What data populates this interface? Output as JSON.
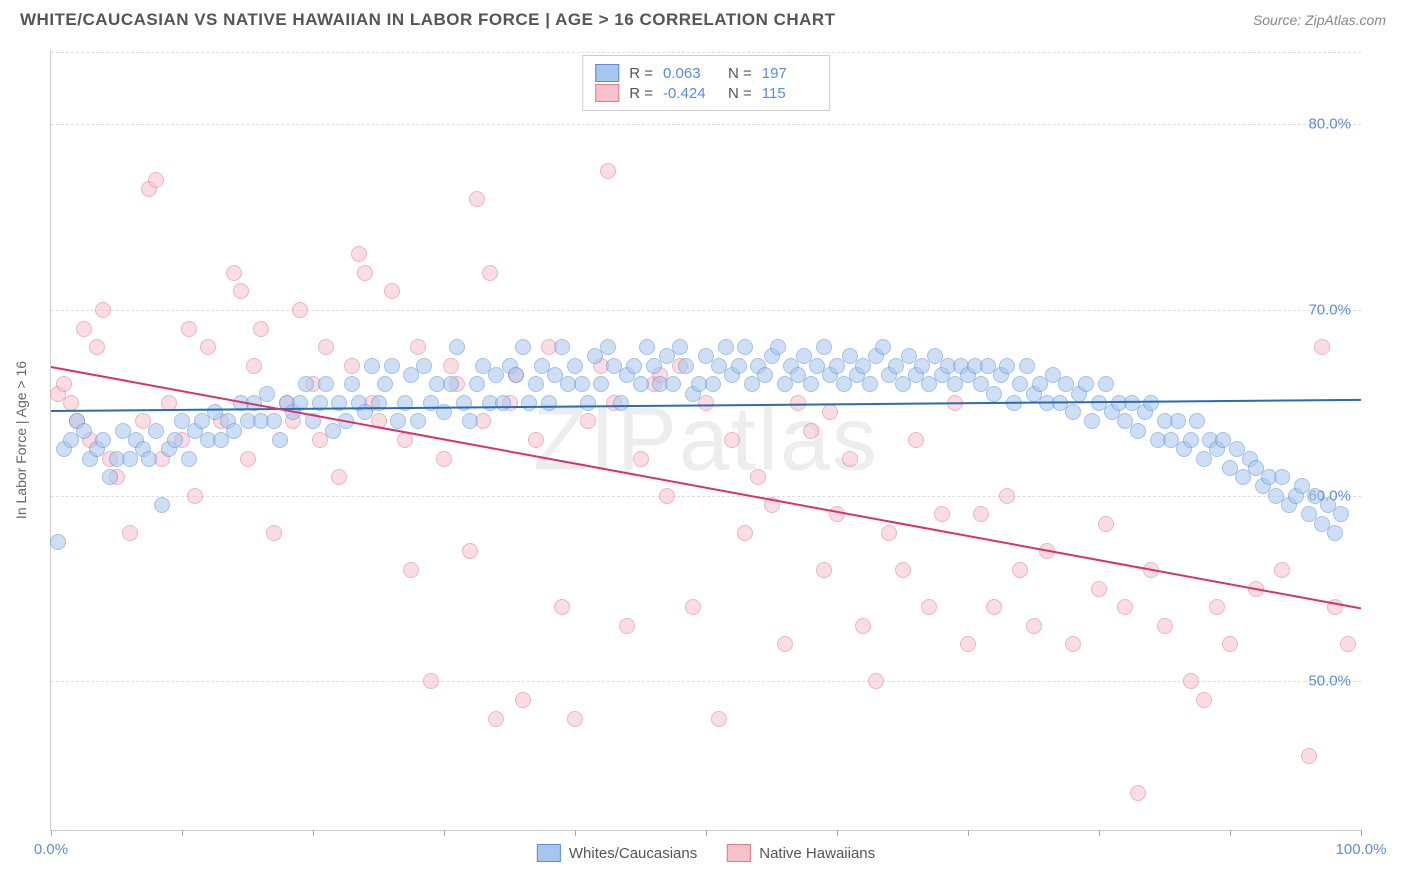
{
  "title": "WHITE/CAUCASIAN VS NATIVE HAWAIIAN IN LABOR FORCE | AGE > 16 CORRELATION CHART",
  "source": "Source: ZipAtlas.com",
  "watermark": "ZIPatlas",
  "y_axis_label": "In Labor Force | Age > 16",
  "chart": {
    "type": "scatter",
    "xlim": [
      0,
      100
    ],
    "ylim": [
      42,
      84
    ],
    "x_ticks_labels": {
      "0": "0.0%",
      "100": "100.0%"
    },
    "x_tick_marks": [
      0,
      10,
      20,
      30,
      40,
      50,
      60,
      70,
      80,
      90,
      100
    ],
    "y_ticks": {
      "50": "50.0%",
      "60": "60.0%",
      "70": "70.0%",
      "80": "80.0%"
    },
    "grid_color": "#dddddd",
    "background": "#ffffff",
    "axis_label_color": "#5b8dd6",
    "point_radius": 8,
    "point_opacity": 0.55,
    "series": [
      {
        "name": "Whites/Caucasians",
        "color_fill": "#a7c6ed",
        "color_stroke": "#5b8dd6",
        "R": "0.063",
        "N": "197",
        "trend": {
          "x1": 0,
          "y1": 64.6,
          "x2": 100,
          "y2": 65.2,
          "color": "#2b6cb0",
          "width": 2
        },
        "points": [
          [
            0.5,
            57.5
          ],
          [
            1,
            62.5
          ],
          [
            1.5,
            63
          ],
          [
            2,
            64
          ],
          [
            2.5,
            63.5
          ],
          [
            3,
            62
          ],
          [
            3.5,
            62.5
          ],
          [
            4,
            63
          ],
          [
            4.5,
            61
          ],
          [
            5,
            62
          ],
          [
            5.5,
            63.5
          ],
          [
            6,
            62
          ],
          [
            6.5,
            63
          ],
          [
            7,
            62.5
          ],
          [
            7.5,
            62
          ],
          [
            8,
            63.5
          ],
          [
            8.5,
            59.5
          ],
          [
            9,
            62.5
          ],
          [
            9.5,
            63
          ],
          [
            10,
            64
          ],
          [
            10.5,
            62
          ],
          [
            11,
            63.5
          ],
          [
            11.5,
            64
          ],
          [
            12,
            63
          ],
          [
            12.5,
            64.5
          ],
          [
            13,
            63
          ],
          [
            13.5,
            64
          ],
          [
            14,
            63.5
          ],
          [
            14.5,
            65
          ],
          [
            15,
            64
          ],
          [
            15.5,
            65
          ],
          [
            16,
            64
          ],
          [
            16.5,
            65.5
          ],
          [
            17,
            64
          ],
          [
            17.5,
            63
          ],
          [
            18,
            65
          ],
          [
            18.5,
            64.5
          ],
          [
            19,
            65
          ],
          [
            19.5,
            66
          ],
          [
            20,
            64
          ],
          [
            20.5,
            65
          ],
          [
            21,
            66
          ],
          [
            21.5,
            63.5
          ],
          [
            22,
            65
          ],
          [
            22.5,
            64
          ],
          [
            23,
            66
          ],
          [
            23.5,
            65
          ],
          [
            24,
            64.5
          ],
          [
            24.5,
            67
          ],
          [
            25,
            65
          ],
          [
            25.5,
            66
          ],
          [
            26,
            67
          ],
          [
            26.5,
            64
          ],
          [
            27,
            65
          ],
          [
            27.5,
            66.5
          ],
          [
            28,
            64
          ],
          [
            28.5,
            67
          ],
          [
            29,
            65
          ],
          [
            29.5,
            66
          ],
          [
            30,
            64.5
          ],
          [
            30.5,
            66
          ],
          [
            31,
            68
          ],
          [
            31.5,
            65
          ],
          [
            32,
            64
          ],
          [
            32.5,
            66
          ],
          [
            33,
            67
          ],
          [
            33.5,
            65
          ],
          [
            34,
            66.5
          ],
          [
            34.5,
            65
          ],
          [
            35,
            67
          ],
          [
            35.5,
            66.5
          ],
          [
            36,
            68
          ],
          [
            36.5,
            65
          ],
          [
            37,
            66
          ],
          [
            37.5,
            67
          ],
          [
            38,
            65
          ],
          [
            38.5,
            66.5
          ],
          [
            39,
            68
          ],
          [
            39.5,
            66
          ],
          [
            40,
            67
          ],
          [
            40.5,
            66
          ],
          [
            41,
            65
          ],
          [
            41.5,
            67.5
          ],
          [
            42,
            66
          ],
          [
            42.5,
            68
          ],
          [
            43,
            67
          ],
          [
            43.5,
            65
          ],
          [
            44,
            66.5
          ],
          [
            44.5,
            67
          ],
          [
            45,
            66
          ],
          [
            45.5,
            68
          ],
          [
            46,
            67
          ],
          [
            46.5,
            66
          ],
          [
            47,
            67.5
          ],
          [
            47.5,
            66
          ],
          [
            48,
            68
          ],
          [
            48.5,
            67
          ],
          [
            49,
            65.5
          ],
          [
            49.5,
            66
          ],
          [
            50,
            67.5
          ],
          [
            50.5,
            66
          ],
          [
            51,
            67
          ],
          [
            51.5,
            68
          ],
          [
            52,
            66.5
          ],
          [
            52.5,
            67
          ],
          [
            53,
            68
          ],
          [
            53.5,
            66
          ],
          [
            54,
            67
          ],
          [
            54.5,
            66.5
          ],
          [
            55,
            67.5
          ],
          [
            55.5,
            68
          ],
          [
            56,
            66
          ],
          [
            56.5,
            67
          ],
          [
            57,
            66.5
          ],
          [
            57.5,
            67.5
          ],
          [
            58,
            66
          ],
          [
            58.5,
            67
          ],
          [
            59,
            68
          ],
          [
            59.5,
            66.5
          ],
          [
            60,
            67
          ],
          [
            60.5,
            66
          ],
          [
            61,
            67.5
          ],
          [
            61.5,
            66.5
          ],
          [
            62,
            67
          ],
          [
            62.5,
            66
          ],
          [
            63,
            67.5
          ],
          [
            63.5,
            68
          ],
          [
            64,
            66.5
          ],
          [
            64.5,
            67
          ],
          [
            65,
            66
          ],
          [
            65.5,
            67.5
          ],
          [
            66,
            66.5
          ],
          [
            66.5,
            67
          ],
          [
            67,
            66
          ],
          [
            67.5,
            67.5
          ],
          [
            68,
            66.5
          ],
          [
            68.5,
            67
          ],
          [
            69,
            66
          ],
          [
            69.5,
            67
          ],
          [
            70,
            66.5
          ],
          [
            70.5,
            67
          ],
          [
            71,
            66
          ],
          [
            71.5,
            67
          ],
          [
            72,
            65.5
          ],
          [
            72.5,
            66.5
          ],
          [
            73,
            67
          ],
          [
            73.5,
            65
          ],
          [
            74,
            66
          ],
          [
            74.5,
            67
          ],
          [
            75,
            65.5
          ],
          [
            75.5,
            66
          ],
          [
            76,
            65
          ],
          [
            76.5,
            66.5
          ],
          [
            77,
            65
          ],
          [
            77.5,
            66
          ],
          [
            78,
            64.5
          ],
          [
            78.5,
            65.5
          ],
          [
            79,
            66
          ],
          [
            79.5,
            64
          ],
          [
            80,
            65
          ],
          [
            80.5,
            66
          ],
          [
            81,
            64.5
          ],
          [
            81.5,
            65
          ],
          [
            82,
            64
          ],
          [
            82.5,
            65
          ],
          [
            83,
            63.5
          ],
          [
            83.5,
            64.5
          ],
          [
            84,
            65
          ],
          [
            84.5,
            63
          ],
          [
            85,
            64
          ],
          [
            85.5,
            63
          ],
          [
            86,
            64
          ],
          [
            86.5,
            62.5
          ],
          [
            87,
            63
          ],
          [
            87.5,
            64
          ],
          [
            88,
            62
          ],
          [
            88.5,
            63
          ],
          [
            89,
            62.5
          ],
          [
            89.5,
            63
          ],
          [
            90,
            61.5
          ],
          [
            90.5,
            62.5
          ],
          [
            91,
            61
          ],
          [
            91.5,
            62
          ],
          [
            92,
            61.5
          ],
          [
            92.5,
            60.5
          ],
          [
            93,
            61
          ],
          [
            93.5,
            60
          ],
          [
            94,
            61
          ],
          [
            94.5,
            59.5
          ],
          [
            95,
            60
          ],
          [
            95.5,
            60.5
          ],
          [
            96,
            59
          ],
          [
            96.5,
            60
          ],
          [
            97,
            58.5
          ],
          [
            97.5,
            59.5
          ],
          [
            98,
            58
          ],
          [
            98.5,
            59
          ]
        ]
      },
      {
        "name": "Native Hawaiians",
        "color_fill": "#f5c2cb",
        "color_stroke": "#e07a8b",
        "R": "-0.424",
        "N": "115",
        "trend": {
          "x1": 0,
          "y1": 67,
          "x2": 100,
          "y2": 54,
          "color": "#d6336c",
          "width": 2
        },
        "points": [
          [
            0.5,
            65.5
          ],
          [
            1,
            66
          ],
          [
            1.5,
            65
          ],
          [
            2,
            64
          ],
          [
            2.5,
            69
          ],
          [
            3,
            63
          ],
          [
            3.5,
            68
          ],
          [
            4,
            70
          ],
          [
            4.5,
            62
          ],
          [
            5,
            61
          ],
          [
            6,
            58
          ],
          [
            7,
            64
          ],
          [
            7.5,
            76.5
          ],
          [
            8,
            77
          ],
          [
            8.5,
            62
          ],
          [
            9,
            65
          ],
          [
            10,
            63
          ],
          [
            10.5,
            69
          ],
          [
            11,
            60
          ],
          [
            12,
            68
          ],
          [
            13,
            64
          ],
          [
            14,
            72
          ],
          [
            14.5,
            71
          ],
          [
            15,
            62
          ],
          [
            15.5,
            67
          ],
          [
            16,
            69
          ],
          [
            17,
            58
          ],
          [
            18,
            65
          ],
          [
            18.5,
            64
          ],
          [
            19,
            70
          ],
          [
            20,
            66
          ],
          [
            20.5,
            63
          ],
          [
            21,
            68
          ],
          [
            22,
            61
          ],
          [
            23,
            67
          ],
          [
            23.5,
            73
          ],
          [
            24,
            72
          ],
          [
            24.5,
            65
          ],
          [
            25,
            64
          ],
          [
            26,
            71
          ],
          [
            27,
            63
          ],
          [
            27.5,
            56
          ],
          [
            28,
            68
          ],
          [
            29,
            50
          ],
          [
            30,
            62
          ],
          [
            30.5,
            67
          ],
          [
            31,
            66
          ],
          [
            32,
            57
          ],
          [
            32.5,
            76
          ],
          [
            33,
            64
          ],
          [
            33.5,
            72
          ],
          [
            34,
            48
          ],
          [
            35,
            65
          ],
          [
            35.5,
            66.5
          ],
          [
            36,
            49
          ],
          [
            37,
            63
          ],
          [
            38,
            68
          ],
          [
            39,
            54
          ],
          [
            40,
            48
          ],
          [
            41,
            64
          ],
          [
            42,
            67
          ],
          [
            42.5,
            77.5
          ],
          [
            43,
            65
          ],
          [
            44,
            53
          ],
          [
            45,
            62
          ],
          [
            46,
            66
          ],
          [
            46.5,
            66.5
          ],
          [
            47,
            60
          ],
          [
            48,
            67
          ],
          [
            49,
            54
          ],
          [
            50,
            65
          ],
          [
            51,
            48
          ],
          [
            52,
            63
          ],
          [
            53,
            58
          ],
          [
            54,
            61
          ],
          [
            55,
            59.5
          ],
          [
            56,
            52
          ],
          [
            57,
            65
          ],
          [
            58,
            63.5
          ],
          [
            59,
            56
          ],
          [
            59.5,
            64.5
          ],
          [
            60,
            59
          ],
          [
            61,
            62
          ],
          [
            62,
            53
          ],
          [
            63,
            50
          ],
          [
            64,
            58
          ],
          [
            65,
            56
          ],
          [
            66,
            63
          ],
          [
            67,
            54
          ],
          [
            68,
            59
          ],
          [
            69,
            65
          ],
          [
            70,
            52
          ],
          [
            71,
            59
          ],
          [
            72,
            54
          ],
          [
            73,
            60
          ],
          [
            74,
            56
          ],
          [
            75,
            53
          ],
          [
            76,
            57
          ],
          [
            78,
            52
          ],
          [
            80,
            55
          ],
          [
            80.5,
            58.5
          ],
          [
            82,
            54
          ],
          [
            83,
            44
          ],
          [
            84,
            56
          ],
          [
            85,
            53
          ],
          [
            87,
            50
          ],
          [
            88,
            49
          ],
          [
            89,
            54
          ],
          [
            90,
            52
          ],
          [
            92,
            55
          ],
          [
            94,
            56
          ],
          [
            96,
            46
          ],
          [
            97,
            68
          ],
          [
            98,
            54
          ],
          [
            99,
            52
          ]
        ]
      }
    ]
  }
}
